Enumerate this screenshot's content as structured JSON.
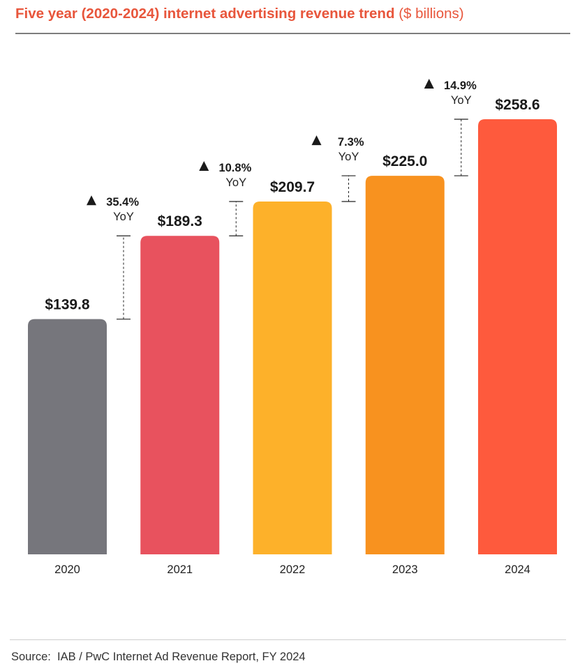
{
  "title": {
    "main": "Five year (2020-2024) internet advertising revenue trend",
    "unit": "($ billions)"
  },
  "chart_data": {
    "type": "bar",
    "categories": [
      "2020",
      "2021",
      "2022",
      "2023",
      "2024"
    ],
    "values": [
      139.8,
      189.3,
      209.7,
      225.0,
      258.6
    ],
    "value_labels": [
      "$139.8",
      "$189.3",
      "$209.7",
      "$225.0",
      "$258.6"
    ],
    "colors": [
      "#76767c",
      "#e8525e",
      "#fdb12a",
      "#f8921f",
      "#fe5a3d"
    ],
    "growth": [
      {
        "pct": "35.4%",
        "label": "YoY"
      },
      {
        "pct": "10.8%",
        "label": "YoY"
      },
      {
        "pct": "7.3%",
        "label": "YoY"
      },
      {
        "pct": "14.9%",
        "label": "YoY"
      }
    ],
    "title": "Five year (2020-2024) internet advertising revenue trend",
    "ylim": [
      0,
      258.6
    ],
    "grid": false,
    "legend": "none"
  },
  "source": "Source:  IAB / PwC Internet Ad Revenue Report, FY 2024"
}
